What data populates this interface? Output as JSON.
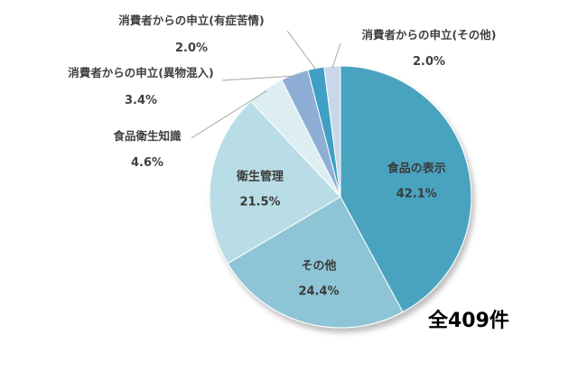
{
  "chart_data": {
    "type": "pie",
    "total_label": "全409件",
    "slices": [
      {
        "name": "食品の表示",
        "value": 42.1,
        "label": "42.1%",
        "color": "#4aa3bf"
      },
      {
        "name": "その他",
        "value": 24.4,
        "label": "24.4%",
        "color": "#8ec5d6"
      },
      {
        "name": "衛生管理",
        "value": 21.5,
        "label": "21.5%",
        "color": "#b9dde6"
      },
      {
        "name": "食品衛生知識",
        "value": 4.6,
        "label": "4.6%",
        "color": "#dceef2"
      },
      {
        "name": "消費者からの申立(異物混入)",
        "value": 3.4,
        "label": "3.4%",
        "color": "#8faed6"
      },
      {
        "name": "消費者からの申立(有症苦情)",
        "value": 2.0,
        "label": "2.0%",
        "color": "#3f9fc4"
      },
      {
        "name": "消費者からの申立(その他)",
        "value": 2.0,
        "label": "2.0%",
        "color": "#c9d7ea"
      }
    ]
  }
}
